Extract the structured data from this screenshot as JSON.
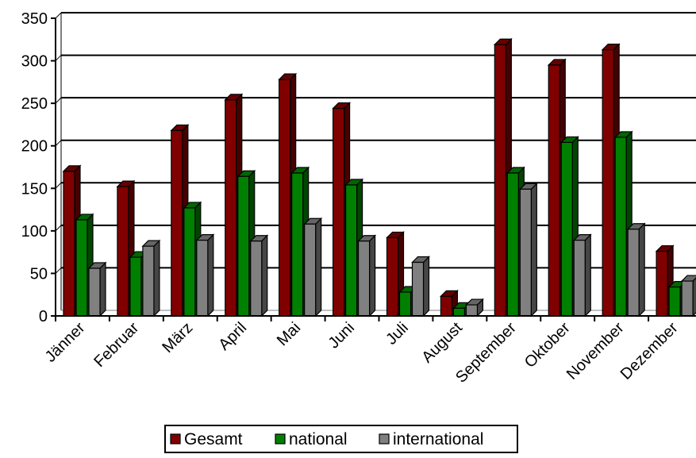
{
  "chart_data": {
    "type": "bar",
    "categories": [
      "Jänner",
      "Februar",
      "März",
      "April",
      "Mai",
      "Juni",
      "Juli",
      "August",
      "September",
      "Oktober",
      "November",
      "Dezember"
    ],
    "series": [
      {
        "name": "Gesamt",
        "color": "#800000",
        "values": [
          170,
          152,
          218,
          254,
          278,
          244,
          92,
          23,
          319,
          295,
          313,
          76
        ]
      },
      {
        "name": "national",
        "color": "#008000",
        "values": [
          113,
          69,
          127,
          164,
          168,
          154,
          28,
          9,
          168,
          204,
          210,
          34
        ]
      },
      {
        "name": "international",
        "color": "#808080",
        "values": [
          56,
          82,
          89,
          88,
          108,
          88,
          63,
          13,
          149,
          89,
          102,
          41
        ]
      }
    ],
    "ylim": [
      0,
      350
    ],
    "yticks": [
      0,
      50,
      100,
      150,
      200,
      250,
      300,
      350
    ],
    "grid": true,
    "legend": "bottom",
    "title": "",
    "xlabel": "",
    "ylabel": ""
  }
}
